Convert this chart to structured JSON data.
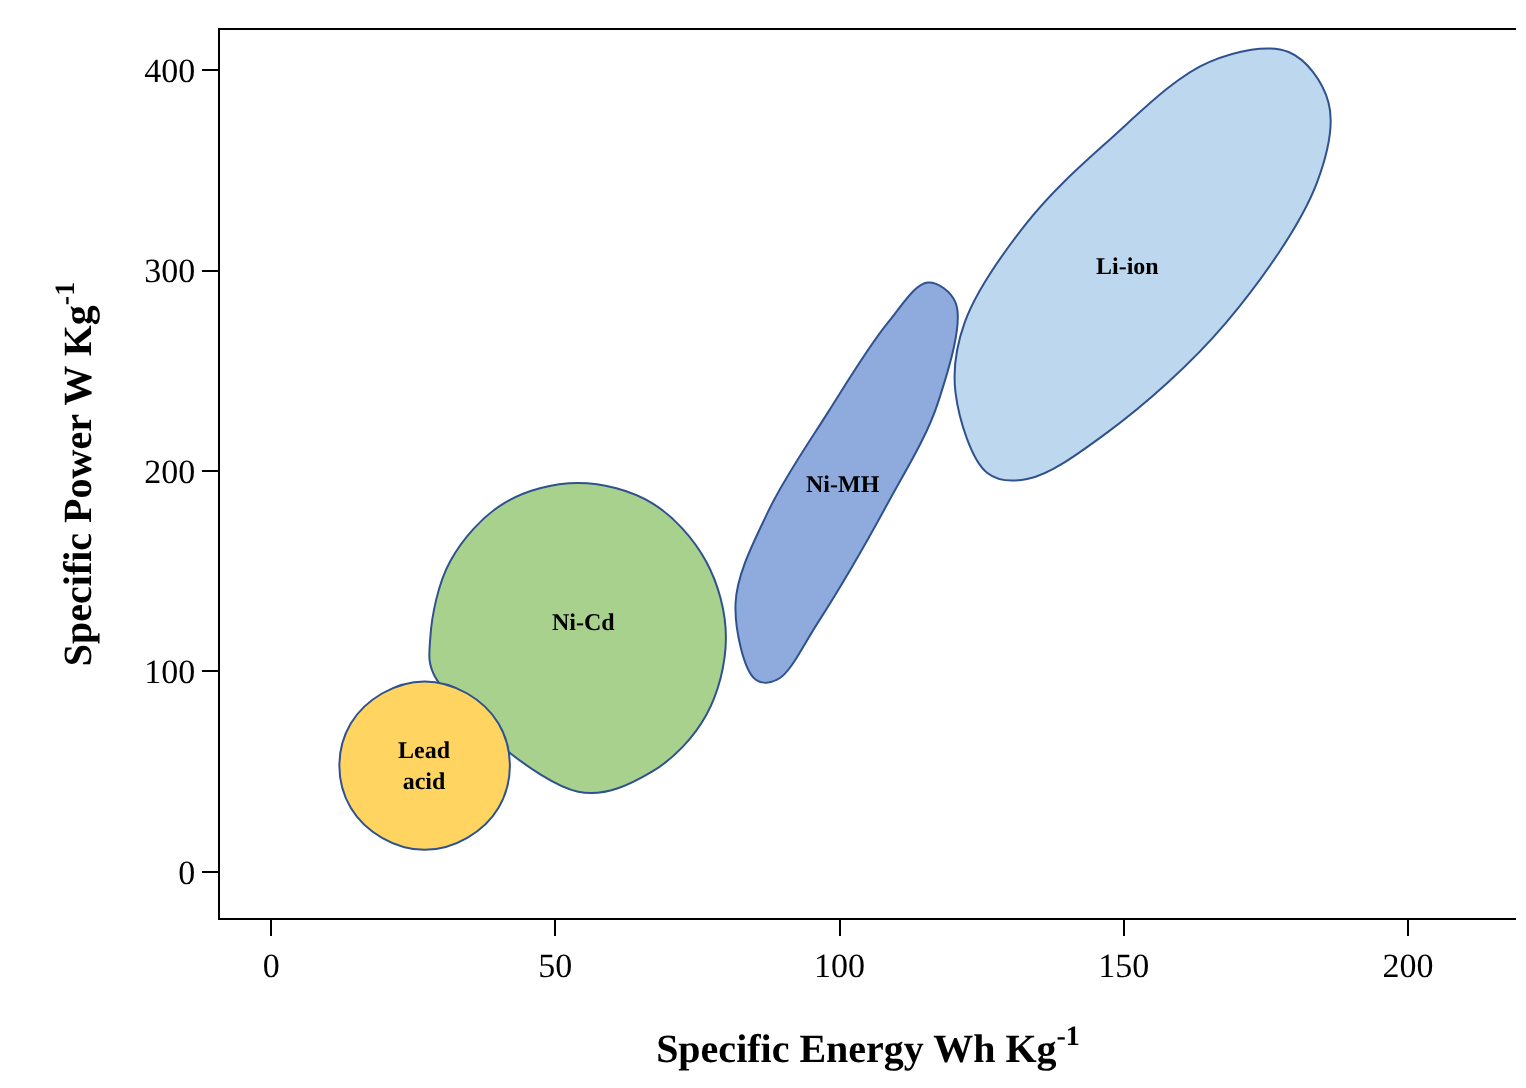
{
  "chart_data": {
    "type": "area",
    "xlabel": "Specific Energy Wh Kg$^{-1}$",
    "ylabel": "Specific Power W Kg$^{-1}$",
    "xlim": [
      -9,
      219
    ],
    "ylim": [
      -23,
      420
    ],
    "xticks": [
      0,
      50,
      100,
      150,
      200
    ],
    "yticks": [
      0,
      100,
      200,
      300,
      400
    ],
    "legend": false,
    "series": [
      {
        "name": "Ni-Cd",
        "color": "#a9d18e",
        "x": [
          80,
          76.5,
          67,
          54,
          41,
          31.5,
          28,
          28.9,
          54,
          67,
          76.5,
          80
        ],
        "values": [
          117,
          155,
          184,
          194,
          184,
          155,
          117,
          97,
          40,
          50,
          78,
          117
        ]
      },
      {
        "name": "Lead\nacid",
        "color": "#ffd460",
        "x": [
          42,
          40,
          34.5,
          27,
          19.5,
          14,
          12,
          14,
          19.5,
          27,
          34.5,
          40,
          42
        ],
        "values": [
          53,
          74,
          89,
          95,
          89,
          74,
          53,
          32,
          17,
          11,
          17,
          32,
          53
        ]
      },
      {
        "name": "Ni-MH",
        "color": "#8faadc",
        "x": [
          81.7,
          85.2,
          89.1,
          96.1,
          108.5,
          117.3,
          120.4,
          115.5,
          108.5,
          97.9,
          87.3,
          81.7
        ],
        "values": [
          134,
          96,
          96,
          124,
          184,
          234,
          284,
          294,
          274,
          229,
          179,
          134
        ]
      },
      {
        "name": "Li-ion",
        "color": "#bdd7ee",
        "x": [
          120.4,
          126,
          133,
          147,
          168,
          184,
          186,
          179,
          165,
          147,
          133,
          122,
          120.4
        ],
        "values": [
          239,
          199,
          196,
          219,
          274,
          344,
          384,
          409,
          404,
          364,
          324,
          274,
          239
        ]
      }
    ]
  }
}
